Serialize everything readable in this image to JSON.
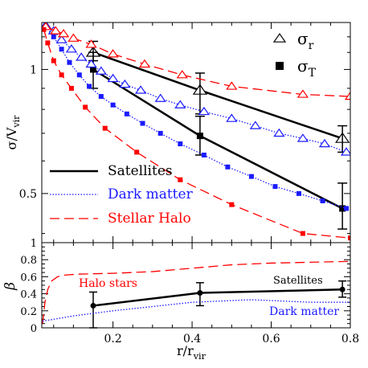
{
  "chart_data": [
    {
      "type": "line",
      "ylabel_main": "σ/V",
      "ylabel_sub": "vir",
      "xlim": [
        0.02,
        0.8
      ],
      "ylim": [
        0.38,
        1.3
      ],
      "log_y": true,
      "yticks_labeled": [
        "0.5",
        "1"
      ],
      "legend_symbols": [
        {
          "marker": "open-triangle",
          "main": "σ",
          "sub": "r"
        },
        {
          "marker": "filled-square",
          "main": "σ",
          "sub": "T"
        }
      ],
      "legend_lines": [
        {
          "label": "Satellites",
          "color": "#000000",
          "style": "solid"
        },
        {
          "label": "Dark matter",
          "color": "#1a1aff",
          "style": "dotted"
        },
        {
          "label": "Stellar Halo",
          "color": "#ff0000",
          "style": "dashed"
        }
      ],
      "series": [
        {
          "label_ref": "Satellites",
          "component": "sigma_r",
          "color": "#000000",
          "x": [
            0.15,
            0.42,
            0.78
          ],
          "y": [
            1.1,
            0.89,
            0.68
          ],
          "err_low": [
            1.05,
            0.78,
            0.63
          ],
          "err_high": [
            1.17,
            0.98,
            0.73
          ]
        },
        {
          "label_ref": "Satellites",
          "component": "sigma_T",
          "color": "#000000",
          "x": [
            0.15,
            0.42,
            0.78
          ],
          "y": [
            1.0,
            0.69,
            0.46
          ],
          "err_low": [
            0.9,
            0.62,
            0.41
          ],
          "err_high": [
            1.1,
            0.77,
            0.53
          ]
        },
        {
          "label_ref": "Dark matter",
          "component": "sigma_r",
          "color": "#1a1aff",
          "x": [
            0.03,
            0.05,
            0.07,
            0.095,
            0.12,
            0.145,
            0.17,
            0.2,
            0.23,
            0.27,
            0.32,
            0.37,
            0.43,
            0.5,
            0.56,
            0.62,
            0.68,
            0.735,
            0.79
          ],
          "y": [
            1.28,
            1.24,
            1.18,
            1.12,
            1.07,
            1.03,
            0.99,
            0.95,
            0.92,
            0.89,
            0.85,
            0.82,
            0.79,
            0.76,
            0.73,
            0.7,
            0.68,
            0.66,
            0.63
          ]
        },
        {
          "label_ref": "Dark matter",
          "component": "sigma_T",
          "color": "#1a1aff",
          "x": [
            0.03,
            0.05,
            0.07,
            0.09,
            0.115,
            0.14,
            0.17,
            0.2,
            0.235,
            0.275,
            0.32,
            0.37,
            0.43,
            0.49,
            0.55,
            0.61,
            0.67,
            0.73,
            0.79
          ],
          "y": [
            1.27,
            1.2,
            1.12,
            1.04,
            0.97,
            0.91,
            0.86,
            0.82,
            0.78,
            0.74,
            0.7,
            0.66,
            0.62,
            0.58,
            0.55,
            0.52,
            0.5,
            0.48,
            0.46
          ]
        },
        {
          "label_ref": "Stellar Halo",
          "component": "sigma_r",
          "color": "#ff0000",
          "x": [
            0.03,
            0.055,
            0.075,
            0.1,
            0.145,
            0.2,
            0.28,
            0.375,
            0.5,
            0.68,
            0.8
          ],
          "y": [
            1.27,
            1.24,
            1.22,
            1.19,
            1.15,
            1.09,
            1.03,
            0.97,
            0.91,
            0.87,
            0.86
          ]
        },
        {
          "label_ref": "Stellar Halo",
          "component": "sigma_T",
          "color": "#ff0000",
          "x": [
            0.025,
            0.035,
            0.05,
            0.07,
            0.095,
            0.13,
            0.18,
            0.26,
            0.37,
            0.5,
            0.68,
            0.8
          ],
          "y": [
            1.25,
            1.16,
            1.05,
            0.97,
            0.9,
            0.81,
            0.72,
            0.63,
            0.54,
            0.47,
            0.4,
            0.39
          ]
        }
      ]
    },
    {
      "type": "line",
      "ylabel": "β",
      "xlabel_main": "r/r",
      "xlabel_sub": "vir",
      "xlim": [
        0.02,
        0.8
      ],
      "ylim": [
        0,
        1
      ],
      "xticks": [
        "0.2",
        "0.4",
        "0.6",
        "0.8"
      ],
      "yticks": [
        "0",
        "0.2",
        "0.4",
        "0.6",
        "0.8",
        "1"
      ],
      "annotations": [
        {
          "text": "Halo stars",
          "color": "#ff0000"
        },
        {
          "text": "Satellites",
          "color": "#000000"
        },
        {
          "text": "Dark matter",
          "color": "#1a1aff"
        }
      ],
      "series": [
        {
          "label_ref": "Satellites",
          "color": "#000000",
          "style": "solid",
          "x": [
            0.15,
            0.42,
            0.78
          ],
          "y": [
            0.26,
            0.41,
            0.45
          ],
          "err_low": [
            0.0,
            0.26,
            0.36
          ],
          "err_high": [
            0.42,
            0.53,
            0.55
          ]
        },
        {
          "label_ref": "Halo stars",
          "color": "#ff0000",
          "style": "dashed",
          "x": [
            0.022,
            0.028,
            0.035,
            0.045,
            0.06,
            0.08,
            0.11,
            0.15,
            0.2,
            0.3,
            0.4,
            0.5,
            0.6,
            0.7,
            0.8
          ],
          "y": [
            0.05,
            0.3,
            0.45,
            0.55,
            0.6,
            0.62,
            0.63,
            0.635,
            0.64,
            0.66,
            0.7,
            0.74,
            0.76,
            0.77,
            0.78
          ]
        },
        {
          "label_ref": "Dark matter",
          "color": "#1a1aff",
          "style": "dotted",
          "x": [
            0.022,
            0.05,
            0.1,
            0.2,
            0.3,
            0.4,
            0.5,
            0.55,
            0.6,
            0.7,
            0.8
          ],
          "y": [
            0.08,
            0.1,
            0.14,
            0.2,
            0.25,
            0.3,
            0.32,
            0.33,
            0.32,
            0.3,
            0.3
          ]
        }
      ]
    }
  ]
}
